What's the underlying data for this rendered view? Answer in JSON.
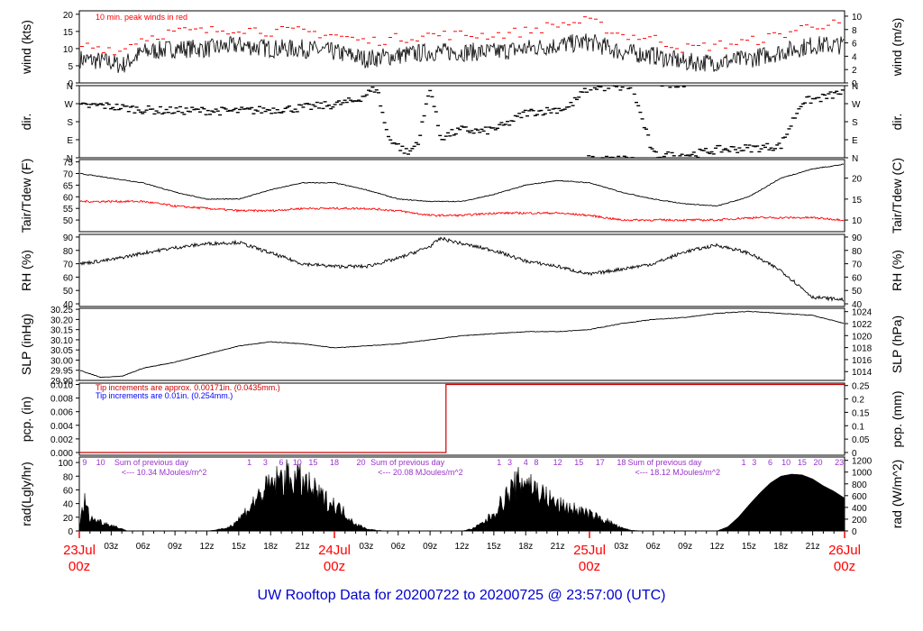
{
  "title": "UW Rooftop Data for 20200722  to  20200725 @ 23:57:00  (UTC)",
  "colors": {
    "black": "#000000",
    "red": "#ff0000",
    "dark_red": "#cc0000",
    "blue": "#0000ff",
    "title_blue": "#0000cc",
    "purple": "#9933cc"
  },
  "time_axis": {
    "hour_labels": [
      "03z",
      "06z",
      "09z",
      "12z",
      "15z",
      "18z",
      "21z",
      "03z",
      "06z",
      "09z",
      "12z",
      "15z",
      "18z",
      "21z",
      "03z",
      "06z",
      "09z",
      "12z",
      "15z",
      "18z",
      "21z"
    ],
    "day_labels": [
      {
        "date": "23Jul",
        "time": "00z"
      },
      {
        "date": "24Jul",
        "time": "00z"
      },
      {
        "date": "25Jul",
        "time": "00z"
      },
      {
        "date": "26Jul",
        "time": "00z"
      }
    ]
  },
  "chart_data": [
    {
      "type": "line",
      "id": "wind",
      "ylabel": "wind (kts)",
      "ylabel_right": "wind (m/s)",
      "ylim": [
        0,
        21
      ],
      "yticks": [
        0,
        5,
        10,
        15,
        20
      ],
      "yticks_right": [
        0,
        2,
        4,
        6,
        8,
        10
      ],
      "annotation": "10 min. peak winds in red",
      "series": [
        {
          "name": "",
          "x_hours": [
            0,
            3,
            4,
            5,
            6,
            9,
            12,
            15,
            18,
            21,
            24,
            27,
            30,
            33,
            36,
            39,
            42,
            45,
            48,
            51,
            54,
            57,
            60,
            63,
            66,
            69,
            72
          ],
          "values": [
            7,
            6,
            5,
            7,
            9,
            10,
            10,
            11,
            10,
            10,
            9,
            7,
            8,
            9,
            9,
            9,
            10,
            11,
            12,
            9,
            8,
            6,
            6,
            7,
            9,
            11,
            11
          ]
        },
        {
          "name": "",
          "x_hours": [
            0,
            3,
            4,
            5,
            6,
            9,
            12,
            15,
            18,
            21,
            24,
            27,
            30,
            33,
            36,
            39,
            42,
            45,
            48,
            51,
            54,
            57,
            60,
            63,
            66,
            69,
            72
          ],
          "values": [
            11,
            10,
            9,
            12,
            13,
            15,
            15,
            16,
            15,
            15,
            14,
            12,
            13,
            14,
            14,
            14,
            15,
            17,
            18,
            14,
            13,
            10,
            11,
            12,
            14,
            17,
            17
          ]
        }
      ]
    },
    {
      "type": "scatter",
      "id": "dir",
      "ylabel": "dir.",
      "ylabel_right": "dir.",
      "ytick_labels": [
        "N",
        "E",
        "S",
        "W",
        "N"
      ],
      "ylim": [
        0,
        360
      ],
      "series": [
        {
          "name": "",
          "x_hours": [
            0,
            2,
            4,
            6,
            8,
            10,
            12,
            14,
            16,
            18,
            20,
            22,
            24,
            26,
            28,
            29,
            30,
            31,
            32,
            33,
            34,
            36,
            38,
            40,
            42,
            44,
            46,
            48,
            50,
            52,
            54,
            56,
            58,
            60,
            62,
            64,
            66,
            68,
            70,
            72
          ],
          "values": [
            255,
            262,
            250,
            240,
            235,
            235,
            235,
            232,
            235,
            240,
            245,
            255,
            265,
            285,
            350,
            110,
            60,
            20,
            95,
            355,
            100,
            140,
            130,
            160,
            225,
            235,
            250,
            355,
            350,
            355,
            15,
            10,
            20,
            40,
            45,
            50,
            60,
            280,
            300,
            330
          ]
        }
      ]
    },
    {
      "type": "line",
      "id": "temp",
      "ylabel": "Tair/Tdew (F)",
      "ylabel_right": "Tair/Tdew (C)",
      "ylim": [
        45,
        76
      ],
      "yticks": [
        50,
        55,
        60,
        65,
        70,
        75
      ],
      "yticks_right": [
        10,
        15,
        20
      ],
      "series": [
        {
          "name": "",
          "x_hours": [
            0,
            3,
            6,
            9,
            12,
            15,
            18,
            21,
            24,
            27,
            30,
            33,
            36,
            39,
            42,
            45,
            48,
            51,
            54,
            57,
            60,
            63,
            66,
            69,
            72
          ],
          "values": [
            70,
            68,
            66,
            62,
            59,
            59,
            63,
            66,
            66,
            63,
            59,
            58,
            58,
            61,
            65,
            67,
            66,
            62,
            59,
            57,
            56,
            60,
            68,
            72,
            74
          ]
        },
        {
          "name": "",
          "x_hours": [
            0,
            3,
            6,
            9,
            12,
            15,
            18,
            21,
            24,
            27,
            30,
            33,
            36,
            39,
            42,
            45,
            48,
            51,
            54,
            57,
            60,
            63,
            66,
            69,
            72
          ],
          "values": [
            58,
            58,
            58,
            56,
            55,
            54,
            54,
            55,
            55,
            55,
            54,
            52,
            52,
            53,
            53,
            53,
            52,
            50,
            50,
            50,
            50,
            51,
            51,
            51,
            50
          ]
        }
      ]
    },
    {
      "type": "line",
      "id": "rh",
      "ylabel": "RH (%)",
      "ylabel_right": "RH (%)",
      "ylim": [
        38,
        92
      ],
      "yticks": [
        40,
        50,
        60,
        70,
        80,
        90
      ],
      "yticks_right": [
        40,
        50,
        60,
        70,
        80,
        90
      ],
      "series": [
        {
          "name": "",
          "x_hours": [
            0,
            3,
            6,
            9,
            12,
            15,
            18,
            21,
            24,
            27,
            30,
            33,
            34,
            36,
            39,
            42,
            45,
            48,
            51,
            54,
            57,
            60,
            63,
            66,
            69,
            72
          ],
          "values": [
            70,
            73,
            78,
            82,
            85,
            86,
            78,
            70,
            68,
            68,
            74,
            83,
            89,
            85,
            80,
            72,
            68,
            62,
            66,
            70,
            79,
            84,
            78,
            65,
            45,
            43
          ]
        }
      ]
    },
    {
      "type": "line",
      "id": "slp",
      "ylabel": "SLP (inHg)",
      "ylabel_right": "SLP (hPa)",
      "ylim": [
        29.9,
        30.255
      ],
      "yticks": [
        29.9,
        29.95,
        30.0,
        30.05,
        30.1,
        30.15,
        30.2,
        30.25
      ],
      "ytick_labels": [
        "29.90",
        "29.95",
        "30.00",
        "30.05",
        "30.10",
        "30.15",
        "30.20",
        "30.25"
      ],
      "yticks_right": [
        1014,
        1016,
        1018,
        1020,
        1022,
        1024
      ],
      "series": [
        {
          "name": "",
          "x_hours": [
            0,
            2,
            4,
            6,
            9,
            12,
            15,
            18,
            21,
            24,
            27,
            30,
            33,
            36,
            39,
            42,
            45,
            48,
            51,
            54,
            57,
            60,
            63,
            66,
            69,
            72
          ],
          "values": [
            29.95,
            29.915,
            29.92,
            29.96,
            29.99,
            30.03,
            30.07,
            30.09,
            30.08,
            30.06,
            30.07,
            30.08,
            30.1,
            30.12,
            30.13,
            30.14,
            30.14,
            30.15,
            30.18,
            30.2,
            30.21,
            30.23,
            30.24,
            30.23,
            30.22,
            30.18
          ]
        }
      ]
    },
    {
      "type": "line",
      "id": "pcp",
      "ylabel": "pcp. (in)",
      "ylabel_right": "pcp. (mm)",
      "ylim": [
        -0.0004,
        0.0102
      ],
      "yticks": [
        0.0,
        0.002,
        0.004,
        0.006,
        0.008,
        0.01
      ],
      "ytick_labels": [
        "0.000",
        "0.002",
        "0.004",
        "0.006",
        "0.008",
        "0.010"
      ],
      "yticks_right": [
        0,
        0.05,
        0.1,
        0.15,
        0.2,
        0.25
      ],
      "annotations": [
        {
          "text": "Tip increments are approx. 0.00171in. (0.0435mm.)",
          "color": "dark_red"
        },
        {
          "text": "Tip increments are 0.01in. (0.254mm.)",
          "color": "blue"
        }
      ],
      "series": [
        {
          "name": "",
          "x_hours": [
            0,
            34.5,
            34.5,
            72
          ],
          "values": [
            0,
            0,
            0.01,
            0.01
          ]
        }
      ]
    },
    {
      "type": "area",
      "id": "rad",
      "ylabel": "rad(Lgly/hr)",
      "ylabel_right": "rad (W/m^2)",
      "ylim": [
        0,
        108
      ],
      "yticks": [
        0,
        20,
        40,
        60,
        80,
        100
      ],
      "yticks_right": [
        0,
        200,
        400,
        600,
        800,
        1000,
        1200
      ],
      "hour_markers": [
        {
          "x_hours": 0.5,
          "label": "9"
        },
        {
          "x_hours": 2,
          "label": "10"
        },
        {
          "x_hours": 16,
          "label": "1"
        },
        {
          "x_hours": 17.5,
          "label": "3"
        },
        {
          "x_hours": 19,
          "label": "6"
        },
        {
          "x_hours": 20.5,
          "label": "10"
        },
        {
          "x_hours": 22,
          "label": "15"
        },
        {
          "x_hours": 24,
          "label": "18"
        },
        {
          "x_hours": 26.5,
          "label": "20"
        },
        {
          "x_hours": 39.5,
          "label": "1"
        },
        {
          "x_hours": 40.5,
          "label": "3"
        },
        {
          "x_hours": 42,
          "label": "4"
        },
        {
          "x_hours": 43,
          "label": "8"
        },
        {
          "x_hours": 45,
          "label": "12"
        },
        {
          "x_hours": 47,
          "label": "15"
        },
        {
          "x_hours": 49,
          "label": "17"
        },
        {
          "x_hours": 51,
          "label": "18"
        },
        {
          "x_hours": 62.5,
          "label": "1"
        },
        {
          "x_hours": 63.5,
          "label": "3"
        },
        {
          "x_hours": 65,
          "label": "6"
        },
        {
          "x_hours": 66.5,
          "label": "10"
        },
        {
          "x_hours": 68,
          "label": "15"
        },
        {
          "x_hours": 69.5,
          "label": "20"
        },
        {
          "x_hours": 71.5,
          "label": "23"
        }
      ],
      "daily_totals": [
        {
          "x_hours": 3.3,
          "label": "Sum of previous day",
          "value": "<--- 10.34 MJoules/m^2"
        },
        {
          "x_hours": 27.4,
          "label": "Sum of previous day",
          "value": "<--- 20.08 MJoules/m^2"
        },
        {
          "x_hours": 51.6,
          "label": "Sum of previous day",
          "value": "<--- 18.12 MJoules/m^2"
        }
      ],
      "series": [
        {
          "name": "",
          "x_hours": [
            0,
            0.5,
            1,
            2,
            3,
            4,
            4.5,
            12,
            13,
            14,
            15,
            16,
            17,
            18,
            19,
            20,
            21,
            22,
            23,
            24,
            25,
            26,
            27,
            28,
            29,
            36,
            37,
            38,
            39,
            40,
            41,
            42,
            43,
            44,
            45,
            46,
            47,
            48,
            49,
            50,
            51,
            52,
            53,
            60,
            61,
            62,
            63,
            64,
            65,
            66,
            67,
            68,
            69,
            70,
            71,
            72
          ],
          "values": [
            10,
            52,
            22,
            16,
            10,
            4,
            0,
            0,
            2,
            6,
            20,
            40,
            62,
            78,
            90,
            92,
            84,
            70,
            55,
            45,
            30,
            12,
            4,
            1,
            0,
            0,
            4,
            14,
            30,
            55,
            78,
            90,
            70,
            58,
            45,
            40,
            35,
            28,
            22,
            14,
            5,
            1,
            0,
            0,
            6,
            20,
            38,
            55,
            70,
            80,
            83,
            82,
            76,
            66,
            58,
            48
          ]
        }
      ]
    }
  ]
}
